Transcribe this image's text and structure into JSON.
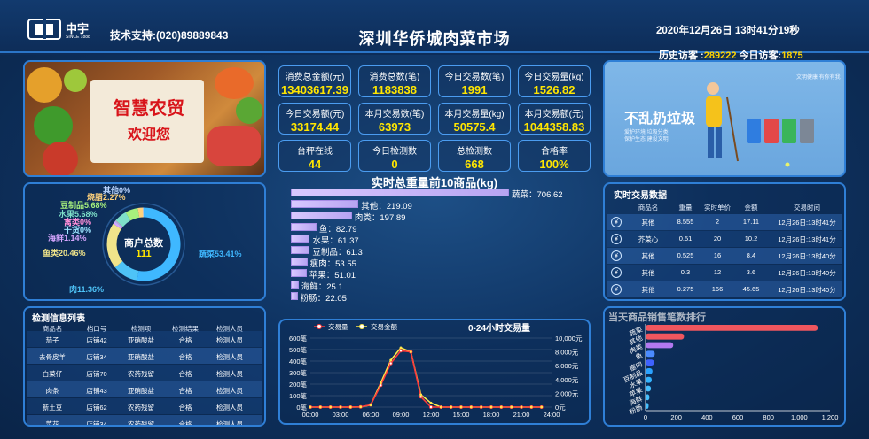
{
  "header": {
    "logo_text": "中宇",
    "logo_sub": "SINCE 1888",
    "support": "技术支持:(020)89889843",
    "title": "深圳华侨城肉菜市场",
    "datetime": "2020年12月26日 13时41分19秒",
    "visitors_history_label": "历史访客 :",
    "visitors_history": "289222",
    "visitors_today_label": "今日访客:",
    "visitors_today": "1875"
  },
  "banner": {
    "line1": "智慧农贸",
    "line2": "欢迎您"
  },
  "stats": [
    {
      "label": "消费总金额(元)",
      "value": "13403617.39"
    },
    {
      "label": "消费总数(笔)",
      "value": "1183838"
    },
    {
      "label": "今日交易数(笔)",
      "value": "1991"
    },
    {
      "label": "今日交易量(kg)",
      "value": "1526.82"
    },
    {
      "label": "今日交易额(元)",
      "value": "33174.44"
    },
    {
      "label": "本月交易数(笔)",
      "value": "63973"
    },
    {
      "label": "本月交易量(kg)",
      "value": "50575.4"
    },
    {
      "label": "本月交易额(元)",
      "value": "1044358.83"
    },
    {
      "label": "台秤在线",
      "value": "44"
    },
    {
      "label": "今日检测数",
      "value": "0"
    },
    {
      "label": "总检测数",
      "value": "668"
    },
    {
      "label": "合格率",
      "value": "100%"
    }
  ],
  "donut": {
    "center_label": "商户总数",
    "center_value": "111",
    "slices": [
      {
        "name": "蔬菜53.41%",
        "value": 53.41,
        "color": "#3fb8ff"
      },
      {
        "name": "肉11.36%",
        "value": 11.36,
        "color": "#4ec3f7"
      },
      {
        "name": "鱼类20.46%",
        "value": 20.46,
        "color": "#f0e48a"
      },
      {
        "name": "海鲜1.14%",
        "value": 1.14,
        "color": "#d6a6ff"
      },
      {
        "name": "干货0%",
        "value": 0.3,
        "color": "#9be3ff"
      },
      {
        "name": "禽类0%",
        "value": 0.3,
        "color": "#ff8fd9"
      },
      {
        "name": "水果5.68%",
        "value": 5.68,
        "color": "#7ee0c9"
      },
      {
        "name": "豆制品5.68%",
        "value": 5.68,
        "color": "#a7f07d"
      },
      {
        "name": "烧腊2.27%",
        "value": 2.27,
        "color": "#ffd27d"
      },
      {
        "name": "其他0%",
        "value": 0.3,
        "color": "#bcd6ff"
      }
    ]
  },
  "top10": {
    "title": "实时总重量前10商品(kg)",
    "items": [
      {
        "name": "蔬菜",
        "value": 706.62
      },
      {
        "name": "其他",
        "value": 219.09
      },
      {
        "name": "肉类",
        "value": 197.89
      },
      {
        "name": "鱼",
        "value": 82.79
      },
      {
        "name": "水果",
        "value": 61.37
      },
      {
        "name": "豆制品",
        "value": 61.3
      },
      {
        "name": "瘦肉",
        "value": 53.55
      },
      {
        "name": "苹果",
        "value": 51.01
      },
      {
        "name": "海鲜",
        "value": 25.1
      },
      {
        "name": "粉肠",
        "value": 22.05
      }
    ]
  },
  "poster": {
    "headline": "不乱扔垃圾",
    "tag1": "文明健康 有你有我",
    "tag2": "爱护环境 垃圾分类",
    "tag3": "保护生态 建设文明"
  },
  "realtime": {
    "title": "实时交易数据",
    "headers": [
      "商品名",
      "重量",
      "实时单价",
      "金额",
      "交易时间"
    ],
    "rows": [
      [
        "其他",
        "8.555",
        "2",
        "17.11",
        "12月26日:13时41分"
      ],
      [
        "芥菜心",
        "0.51",
        "20",
        "10.2",
        "12月26日:13时41分"
      ],
      [
        "其他",
        "0.525",
        "16",
        "8.4",
        "12月26日:13时40分"
      ],
      [
        "其他",
        "0.3",
        "12",
        "3.6",
        "12月26日:13时40分"
      ],
      [
        "其他",
        "0.275",
        "166",
        "45.65",
        "12月26日:13时40分"
      ]
    ]
  },
  "inspection": {
    "title": "检测信息列表",
    "headers": [
      "商品名",
      "档口号",
      "检测项",
      "检测结果",
      "检测人员"
    ],
    "rows": [
      [
        "茄子",
        "店铺42",
        "亚硝酸盐",
        "合格",
        "检测人员"
      ],
      [
        "去骨皮羊",
        "店铺34",
        "亚硝酸盐",
        "合格",
        "检测人员"
      ],
      [
        "白菜仔",
        "店铺70",
        "农药残留",
        "合格",
        "检测人员"
      ],
      [
        "肉条",
        "店铺43",
        "亚硝酸盐",
        "合格",
        "检测人员"
      ],
      [
        "新土豆",
        "店铺62",
        "农药残留",
        "合格",
        "检测人员"
      ],
      [
        "菜花",
        "店铺34",
        "农药残留",
        "合格",
        "检测人员"
      ]
    ]
  },
  "hourly": {
    "title": "0-24小时交易量",
    "legend": [
      "交易量",
      "交易金额"
    ],
    "y_left": [
      "600笔",
      "500笔",
      "400笔",
      "300笔",
      "200笔",
      "100笔",
      "0笔"
    ],
    "y_right": [
      "10,000元",
      "8,000元",
      "6,000元",
      "4,000元",
      "2,000元",
      "0元"
    ],
    "x": [
      "00:00",
      "03:00",
      "06:00",
      "09:00",
      "12:00",
      "15:00",
      "18:00",
      "21:00",
      "24:00"
    ]
  },
  "chart_data": [
    {
      "type": "line",
      "title": "0-24小时交易量",
      "x": [
        0,
        1,
        2,
        3,
        4,
        5,
        6,
        7,
        8,
        9,
        10,
        11,
        12,
        13,
        14,
        15,
        16,
        17,
        18,
        19,
        20,
        21,
        22,
        23
      ],
      "series": [
        {
          "name": "交易量",
          "values": [
            0,
            0,
            0,
            0,
            0,
            2,
            20,
            190,
            380,
            490,
            480,
            90,
            0,
            0,
            0,
            0,
            0,
            0,
            0,
            0,
            0,
            0,
            0,
            0
          ]
        },
        {
          "name": "交易金额",
          "values": [
            0,
            0,
            0,
            0,
            0,
            30,
            300,
            3500,
            6800,
            8600,
            8000,
            1800,
            600,
            0,
            0,
            0,
            0,
            0,
            0,
            0,
            0,
            0,
            0,
            0
          ]
        }
      ],
      "ylim": [
        0,
        600
      ],
      "ylim_right": [
        0,
        10000
      ]
    },
    {
      "type": "bar",
      "title": "当天商品销售笔数排行",
      "categories": [
        "蔬菜",
        "其他",
        "肉类",
        "鱼",
        "瘦肉",
        "豆制品",
        "水果",
        "苹果",
        "海鲜",
        "粉肠"
      ],
      "values": [
        1120,
        250,
        180,
        60,
        55,
        45,
        40,
        35,
        25,
        20
      ],
      "xlim": [
        0,
        1200
      ],
      "xticks": [
        "0",
        "200",
        "400",
        "600",
        "800",
        "1,000",
        "1,200"
      ]
    }
  ],
  "sales_rank": {
    "title": "当天商品销售笔数排行",
    "colors": [
      "#f0565e",
      "#f0565e",
      "#b278f0",
      "#4b8bff",
      "#3f62ff",
      "#2aa2ff",
      "#33b4ff",
      "#46c0ff",
      "#46c0ff",
      "#46c0ff"
    ]
  }
}
